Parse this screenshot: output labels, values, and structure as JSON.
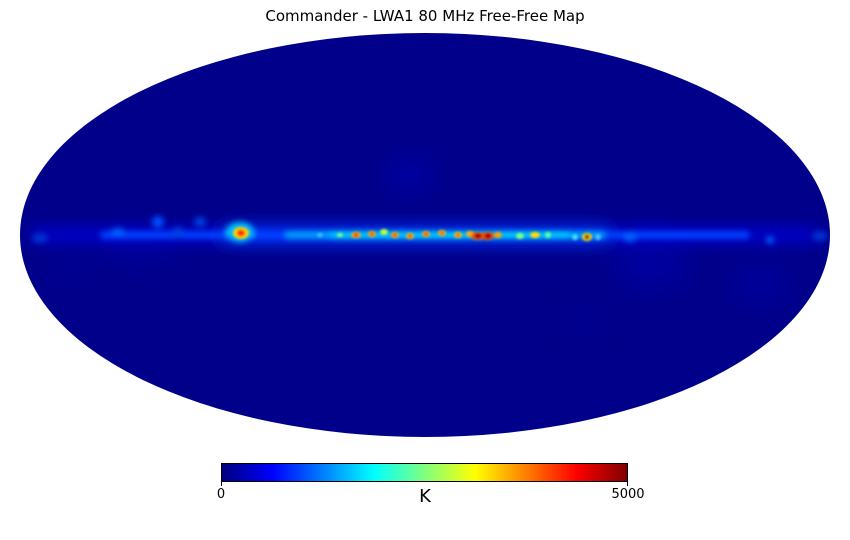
{
  "title": "Commander - LWA1 80 MHz Free-Free Map",
  "projection": "mollweide",
  "colormap": "jet",
  "colorbar": {
    "min_label": "0",
    "max_label": "5000",
    "unit": "K",
    "min": 0,
    "max": 5000
  }
}
